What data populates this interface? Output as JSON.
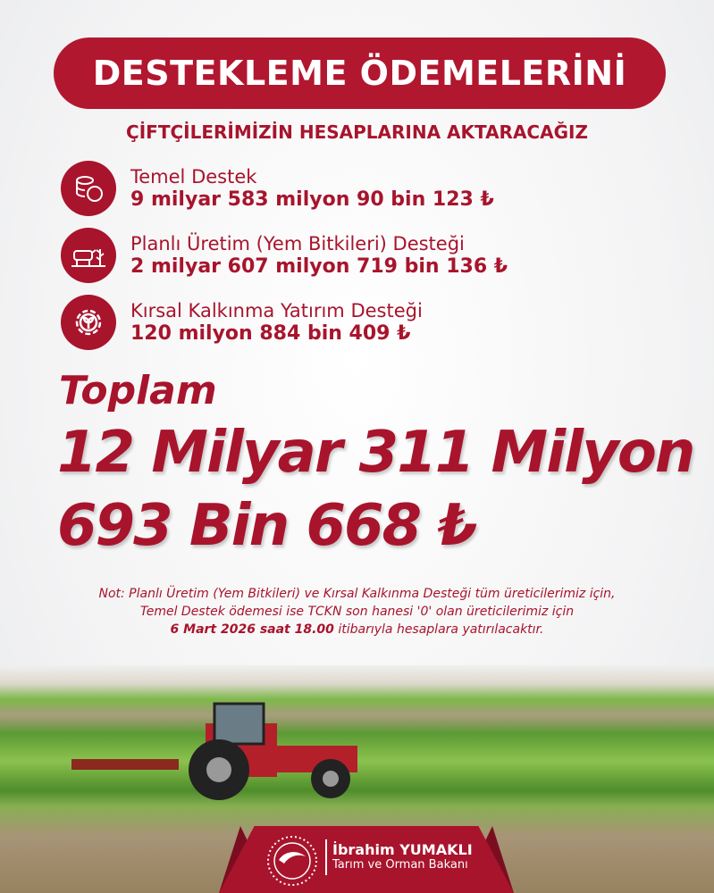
{
  "title": "DESTEKLEME ÖDEMELERİNİ",
  "subtitle": "ÇİFTÇİLERİMİZİN HESAPLARINA AKTARACAĞIZ",
  "items": [
    {
      "icon": "coins-icon",
      "label": "Temel Destek",
      "value": "9 milyar 583 milyon 90 bin 123 ₺"
    },
    {
      "icon": "livestock-plant-icon",
      "label": "Planlı Üretim (Yem Bitkileri) Desteği",
      "value": "2 milyar 607 milyon 719 bin 136 ₺"
    },
    {
      "icon": "gear-sprout-icon",
      "label": "Kırsal Kalkınma Yatırım Desteği",
      "value": "120 milyon 884 bin 409 ₺"
    }
  ],
  "total": {
    "label": "Toplam",
    "line1": "12 Milyar 311 Milyon",
    "line2": "693 Bin 668 ₺"
  },
  "note": {
    "line1": "Not: Planlı Üretim (Yem Bitkileri) ve Kırsal Kalkınma Desteği tüm üreticilerimiz için,",
    "line2": "Temel Destek ödemesi ise TCKN son hanesi '0' olan üreticilerimiz için",
    "bold": "6 Mart 2026 saat 18.00",
    "rest": " itibarıyla hesaplara yatırılacaktır."
  },
  "footer": {
    "name": "İbrahim YUMAKLI",
    "role": "Tarım ve Orman Bakanı"
  },
  "colors": {
    "accent": "#a8142c"
  }
}
